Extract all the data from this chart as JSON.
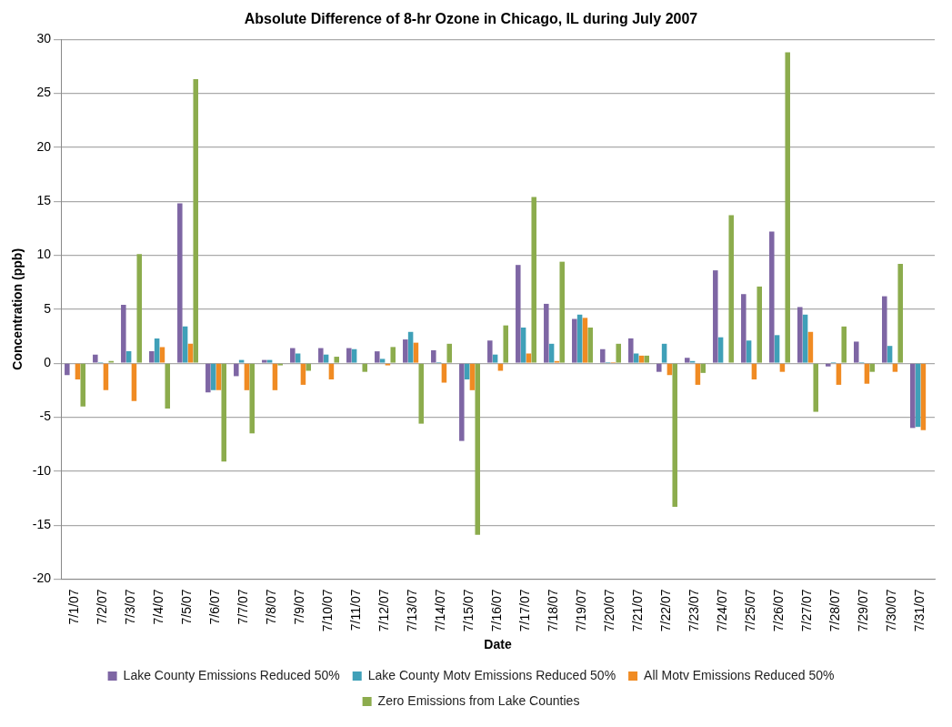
{
  "chart_data": {
    "type": "bar",
    "title": "Absolute Difference of 8-hr Ozone in Chicago, IL during July 2007",
    "xlabel": "Date",
    "ylabel": "Concentration (ppb)",
    "categories": [
      "7/1/07",
      "7/2/07",
      "7/3/07",
      "7/4/07",
      "7/5/07",
      "7/6/07",
      "7/7/07",
      "7/8/07",
      "7/9/07",
      "7/10/07",
      "7/11/07",
      "7/12/07",
      "7/13/07",
      "7/14/07",
      "7/15/07",
      "7/16/07",
      "7/17/07",
      "7/18/07",
      "7/19/07",
      "7/20/07",
      "7/21/07",
      "7/22/07",
      "7/23/07",
      "7/24/07",
      "7/25/07",
      "7/26/07",
      "7/27/07",
      "7/28/07",
      "7/29/07",
      "7/30/07",
      "7/31/07"
    ],
    "series": [
      {
        "name": "Lake County Emissions Reduced 50%",
        "color": "#7e66a4",
        "values": [
          -1.1,
          0.8,
          5.4,
          1.1,
          14.8,
          -2.7,
          -1.2,
          0.3,
          1.4,
          1.4,
          1.4,
          1.1,
          2.2,
          1.2,
          -7.2,
          2.1,
          9.1,
          5.5,
          4.1,
          1.3,
          2.3,
          -0.8,
          0.5,
          8.6,
          6.4,
          12.2,
          5.2,
          -0.3,
          2,
          6.2,
          -6
        ]
      },
      {
        "name": "Lake County Motv Emissions Reduced 50%",
        "color": "#3fa0b8",
        "values": [
          0,
          0.1,
          1.1,
          2.3,
          3.4,
          -2.5,
          0.3,
          0.3,
          0.9,
          0.8,
          1.3,
          0.4,
          2.9,
          0.1,
          -1.5,
          0.8,
          3.3,
          1.8,
          4.5,
          0.1,
          0.9,
          1.8,
          0.2,
          2.4,
          2.1,
          2.6,
          4.5,
          0.1,
          0.1,
          1.6,
          -5.9
        ]
      },
      {
        "name": "All Motv Emissions Reduced 50%",
        "color": "#f08b23",
        "values": [
          -1.5,
          -2.5,
          -3.5,
          1.5,
          1.8,
          -2.5,
          -2.5,
          -2.5,
          -2,
          -1.5,
          0,
          -0.2,
          1.9,
          -1.8,
          -2.5,
          -0.7,
          0.9,
          0.2,
          4.2,
          0.1,
          0.7,
          -1.1,
          -2,
          0,
          -1.5,
          -0.8,
          2.9,
          -2,
          -1.9,
          -0.8,
          -6.2
        ]
      },
      {
        "name": "Zero Emissions from Lake Counties",
        "color": "#8cac4d",
        "values": [
          -4,
          0.2,
          10.1,
          -4.2,
          26.3,
          -9.1,
          -6.5,
          -0.2,
          -0.7,
          0.6,
          -0.8,
          1.5,
          -5.6,
          1.8,
          -15.9,
          3.5,
          15.4,
          9.4,
          3.3,
          1.8,
          0.7,
          -13.3,
          -0.9,
          13.7,
          7.1,
          28.8,
          -4.5,
          3.4,
          -0.8,
          9.2,
          null
        ]
      }
    ],
    "ylim": [
      -20,
      30
    ],
    "yticks": [
      -20,
      -15,
      -10,
      -5,
      0,
      5,
      10,
      15,
      20,
      25,
      30
    ],
    "grid": "y",
    "legend": "bottom"
  }
}
